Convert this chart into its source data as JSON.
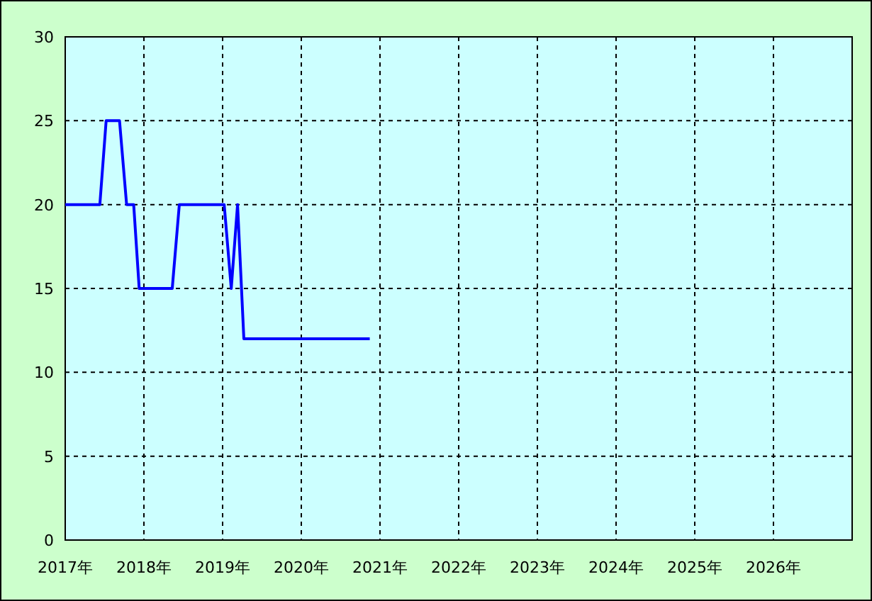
{
  "chart_data": {
    "type": "line",
    "x": [
      2017.0,
      2017.44,
      2017.52,
      2017.69,
      2017.78,
      2017.87,
      2017.94,
      2018.36,
      2018.45,
      2019.02,
      2019.11,
      2019.19,
      2019.27,
      2020.87
    ],
    "series": [
      {
        "color": "#0000ff",
        "values": [
          20,
          20,
          25,
          25,
          20,
          20,
          15,
          15,
          20,
          20,
          15,
          20,
          12,
          12
        ]
      }
    ],
    "xlim": [
      2017,
      2027
    ],
    "xticks": [
      {
        "value": 2017,
        "label": "2017年"
      },
      {
        "value": 2018,
        "label": "2018年"
      },
      {
        "value": 2019,
        "label": "2019年"
      },
      {
        "value": 2020,
        "label": "2020年"
      },
      {
        "value": 2021,
        "label": "2021年"
      },
      {
        "value": 2022,
        "label": "2022年"
      },
      {
        "value": 2023,
        "label": "2023年"
      },
      {
        "value": 2024,
        "label": "2024年"
      },
      {
        "value": 2025,
        "label": "2025年"
      },
      {
        "value": 2026,
        "label": "2026年"
      }
    ],
    "ylim": [
      0,
      30
    ],
    "yticks": [
      0,
      5,
      10,
      15,
      20,
      25,
      30
    ],
    "grid": true,
    "marker": "none",
    "line_style": "solid"
  }
}
